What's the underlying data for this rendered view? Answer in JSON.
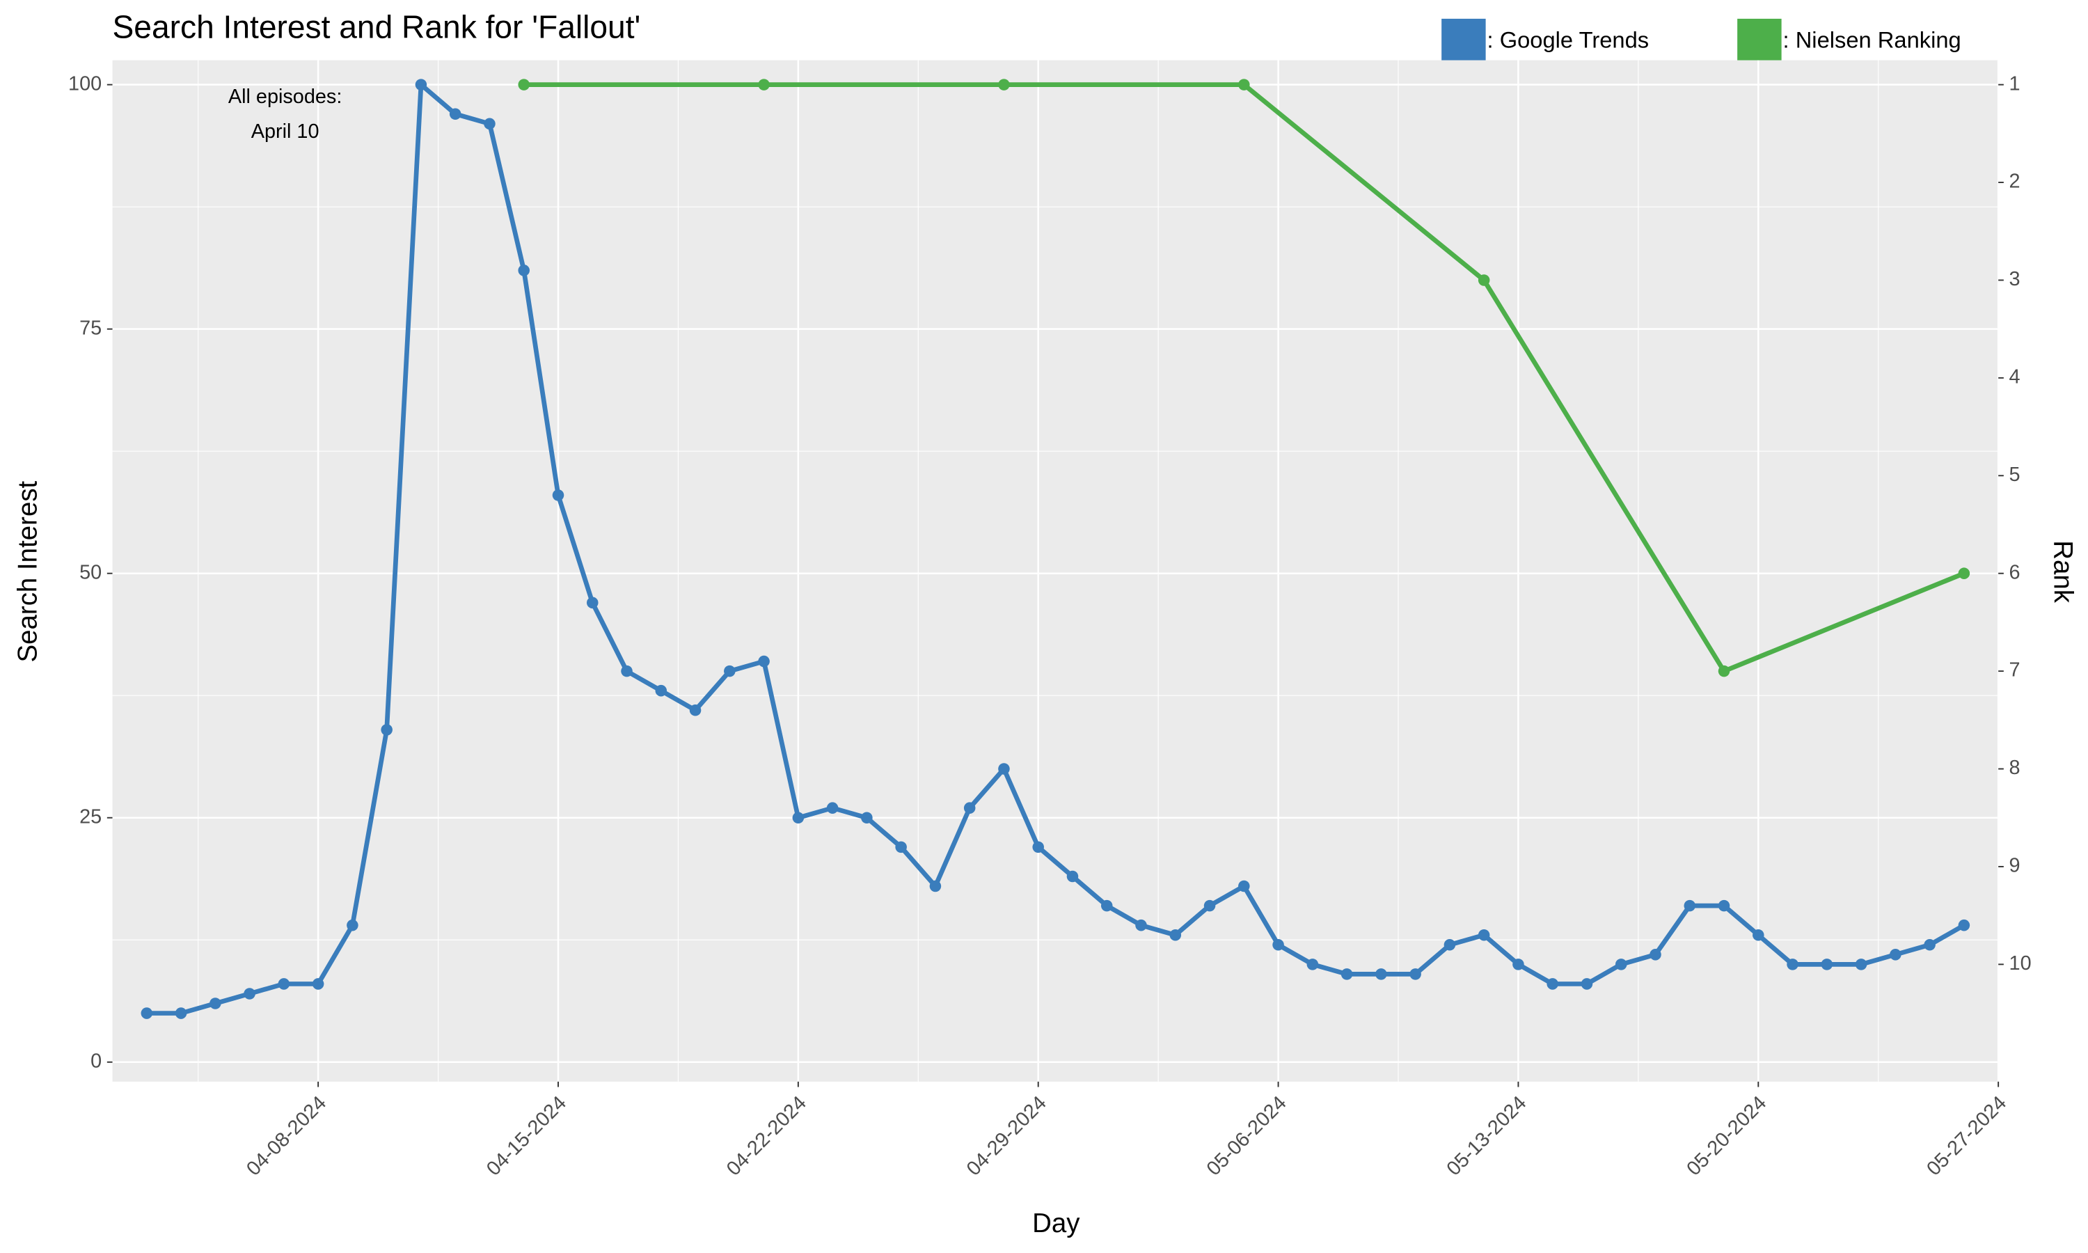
{
  "chart_data": {
    "type": "line",
    "title": "Search Interest and Rank for 'Fallout'",
    "x_label": "Day",
    "y_label": "Search Interest",
    "y2_label": "Rank",
    "annotation": [
      "All episodes:",
      "April 10"
    ],
    "xlim": [
      "04-02-2024",
      "05-27-2024"
    ],
    "xticks": [
      "04-08-2024",
      "04-15-2024",
      "04-22-2024",
      "04-29-2024",
      "05-06-2024",
      "05-13-2024",
      "05-20-2024",
      "05-27-2024"
    ],
    "ylim": [
      -2,
      102.5
    ],
    "yticks": [
      0,
      25,
      50,
      75,
      100
    ],
    "y2lim": [
      11.2,
      0.75
    ],
    "y2ticks": [
      1,
      2,
      3,
      4,
      5,
      6,
      7,
      8,
      9,
      10
    ],
    "grid": true,
    "legend": "top-right",
    "series": [
      {
        "name": ": Google Trends",
        "color": "#3a7dbc",
        "x": [
          "04-03-2024",
          "04-04-2024",
          "04-05-2024",
          "04-06-2024",
          "04-07-2024",
          "04-08-2024",
          "04-09-2024",
          "04-10-2024",
          "04-11-2024",
          "04-12-2024",
          "04-13-2024",
          "04-14-2024",
          "04-15-2024",
          "04-16-2024",
          "04-17-2024",
          "04-18-2024",
          "04-19-2024",
          "04-20-2024",
          "04-21-2024",
          "04-22-2024",
          "04-23-2024",
          "04-24-2024",
          "04-25-2024",
          "04-26-2024",
          "04-27-2024",
          "04-28-2024",
          "04-29-2024",
          "04-30-2024",
          "05-01-2024",
          "05-02-2024",
          "05-03-2024",
          "05-04-2024",
          "05-05-2024",
          "05-06-2024",
          "05-07-2024",
          "05-08-2024",
          "05-09-2024",
          "05-10-2024",
          "05-11-2024",
          "05-12-2024",
          "05-13-2024",
          "05-14-2024",
          "05-15-2024",
          "05-16-2024",
          "05-17-2024",
          "05-18-2024",
          "05-19-2024",
          "05-20-2024",
          "05-21-2024",
          "05-22-2024",
          "05-23-2024",
          "05-24-2024",
          "05-25-2024",
          "05-26-2024"
        ],
        "values": [
          5,
          5,
          6,
          7,
          8,
          8,
          14,
          34,
          100,
          97,
          96,
          81,
          58,
          47,
          40,
          38,
          36,
          40,
          41,
          25,
          26,
          25,
          22,
          18,
          26,
          30,
          22,
          19,
          16,
          14,
          13,
          16,
          18,
          12,
          10,
          9,
          9,
          9,
          12,
          13,
          10,
          8,
          8,
          10,
          11,
          16,
          16,
          13,
          10,
          10,
          10,
          11,
          12,
          14
        ]
      },
      {
        "name": ": Nielsen Ranking",
        "color": "#4daf4a",
        "axis": "y2",
        "x": [
          "04-14-2024",
          "04-21-2024",
          "04-28-2024",
          "05-05-2024",
          "05-12-2024",
          "05-19-2024",
          "05-26-2024"
        ],
        "values": [
          1,
          1,
          1,
          1,
          3,
          7,
          6
        ]
      }
    ]
  }
}
